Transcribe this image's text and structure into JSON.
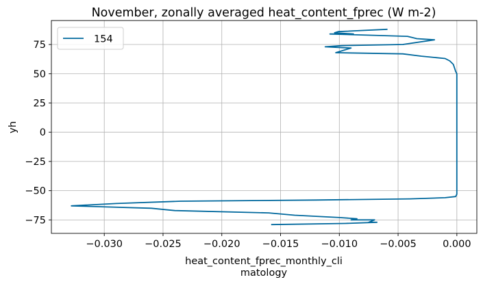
{
  "chart_data": {
    "type": "line",
    "title": "November, zonally averaged heat_content_fprec (W m-2)",
    "xlabel_lines": [
      "heat_content_fprec_monthly_cli",
      "matology"
    ],
    "ylabel": "yh",
    "xlim": [
      -0.0345,
      0.0017
    ],
    "ylim": [
      -86.5,
      95.5
    ],
    "xticks": [
      -0.03,
      -0.025,
      -0.02,
      -0.015,
      -0.01,
      -0.005,
      0.0
    ],
    "xtick_labels": [
      "−0.030",
      "−0.025",
      "−0.020",
      "−0.015",
      "−0.010",
      "−0.005",
      "0.000"
    ],
    "yticks": [
      -75,
      -50,
      -25,
      0,
      25,
      50,
      75
    ],
    "ytick_labels": [
      "−75",
      "−50",
      "−25",
      "0",
      "25",
      "50",
      "75"
    ],
    "grid": true,
    "legend": {
      "position": "top-left",
      "entries": [
        "154"
      ]
    },
    "line_color": "#00689d",
    "series": [
      {
        "name": "154",
        "x": [
          -0.0059,
          -0.0101,
          -0.0104,
          -0.0088,
          -0.0108,
          -0.0042,
          -0.0034,
          -0.0019,
          -0.0046,
          -0.0098,
          -0.0112,
          -0.009,
          -0.0103,
          -0.0046,
          -0.003,
          -0.001,
          -0.0006,
          -0.0003,
          -0.0002,
          -0.0001,
          0.0,
          0.0,
          0.0,
          0.0,
          -0.0001,
          -0.001,
          -0.004,
          -0.012,
          -0.0235,
          -0.029,
          -0.0328,
          -0.026,
          -0.024,
          -0.016,
          -0.0138,
          -0.01,
          -0.0085,
          -0.009,
          -0.007,
          -0.0075,
          -0.0068,
          -0.0095,
          -0.0158
        ],
        "y": [
          88,
          86,
          85,
          84,
          84,
          82,
          80,
          79,
          75,
          74,
          73,
          72,
          68,
          67,
          65,
          63,
          61,
          58,
          55,
          52,
          50,
          0,
          -50,
          -53,
          -55,
          -56,
          -57,
          -58,
          -59,
          -61,
          -63,
          -65,
          -67,
          -69,
          -71,
          -73,
          -74,
          -75,
          -75,
          -77,
          -77,
          -78,
          -79
        ]
      }
    ]
  }
}
